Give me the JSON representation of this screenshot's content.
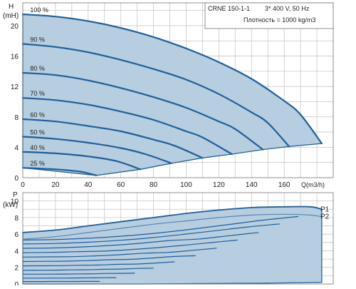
{
  "header": {
    "model": "CRNE 150-1-1",
    "supply": "3* 400 V, 50 Hz",
    "density": "Плотность = 1000 kg/m3"
  },
  "chart_data": [
    {
      "type": "line",
      "ylabel_top": "H",
      "ylabel_unit": "(mH)",
      "xlabel": "Q(m3/h)",
      "xlim": [
        0,
        190
      ],
      "ylim": [
        0,
        23
      ],
      "x_ticks": [
        0,
        20,
        40,
        60,
        80,
        100,
        120,
        140,
        160
      ],
      "y_ticks": [
        0,
        4,
        8,
        12,
        16,
        20
      ],
      "grid": true,
      "series": [
        {
          "name": "100 %",
          "x": [
            0,
            20,
            40,
            60,
            80,
            100,
            120,
            140,
            160,
            170,
            183
          ],
          "y": [
            21.5,
            21.2,
            20.6,
            19.7,
            18.5,
            17.0,
            15.2,
            13.0,
            10.1,
            8.3,
            4.5
          ]
        },
        {
          "name": "90 %",
          "x": [
            0,
            20,
            40,
            60,
            80,
            100,
            120,
            140,
            150,
            163
          ],
          "y": [
            17.6,
            17.2,
            16.5,
            15.5,
            14.3,
            12.9,
            11.0,
            8.6,
            7.2,
            4.1
          ]
        },
        {
          "name": "80 %",
          "x": [
            0,
            20,
            40,
            60,
            80,
            100,
            120,
            130,
            147
          ],
          "y": [
            13.8,
            13.5,
            12.8,
            11.8,
            10.6,
            9.2,
            7.4,
            6.4,
            3.7
          ]
        },
        {
          "name": "70 %",
          "x": [
            0,
            20,
            40,
            60,
            80,
            100,
            110,
            128
          ],
          "y": [
            10.5,
            10.2,
            9.6,
            8.7,
            7.6,
            6.1,
            5.3,
            3.1
          ]
        },
        {
          "name": "60 %",
          "x": [
            0,
            20,
            40,
            60,
            80,
            93,
            110
          ],
          "y": [
            7.7,
            7.4,
            6.8,
            6.1,
            5.0,
            4.2,
            2.6
          ]
        },
        {
          "name": "50 %",
          "x": [
            0,
            20,
            40,
            60,
            75,
            91
          ],
          "y": [
            5.4,
            5.1,
            4.6,
            3.9,
            3.1,
            1.9
          ]
        },
        {
          "name": "40 %",
          "x": [
            0,
            20,
            40,
            57,
            72
          ],
          "y": [
            3.4,
            3.2,
            2.8,
            2.2,
            1.1
          ]
        },
        {
          "name": "25 %",
          "x": [
            0,
            20,
            35,
            45
          ],
          "y": [
            1.3,
            1.1,
            0.8,
            0.3
          ]
        }
      ],
      "min_curve": {
        "x": [
          45,
          72,
          91,
          110,
          128,
          147,
          163,
          183
        ],
        "y": [
          0.3,
          1.1,
          1.9,
          2.6,
          3.1,
          3.7,
          4.1,
          4.5
        ]
      }
    },
    {
      "type": "line",
      "ylabel_top": "P",
      "ylabel_unit": "(kW)",
      "ylim": [
        0,
        11
      ],
      "y_ticks": [
        0,
        2,
        4,
        6,
        8,
        10
      ],
      "grid": true,
      "series": [
        {
          "name": "P1",
          "x": [
            0,
            20,
            40,
            60,
            80,
            100,
            120,
            140,
            160,
            176,
            183
          ],
          "y": [
            6.2,
            6.5,
            7.0,
            7.5,
            8.0,
            8.5,
            8.9,
            9.2,
            9.3,
            9.3,
            9.0
          ]
        },
        {
          "name": "P2",
          "x": [
            0,
            20,
            40,
            60,
            80,
            100,
            120,
            140,
            160,
            176,
            183
          ],
          "y": [
            5.4,
            5.7,
            6.2,
            6.7,
            7.2,
            7.6,
            8.0,
            8.3,
            8.4,
            8.3,
            8.1
          ]
        }
      ]
    }
  ]
}
